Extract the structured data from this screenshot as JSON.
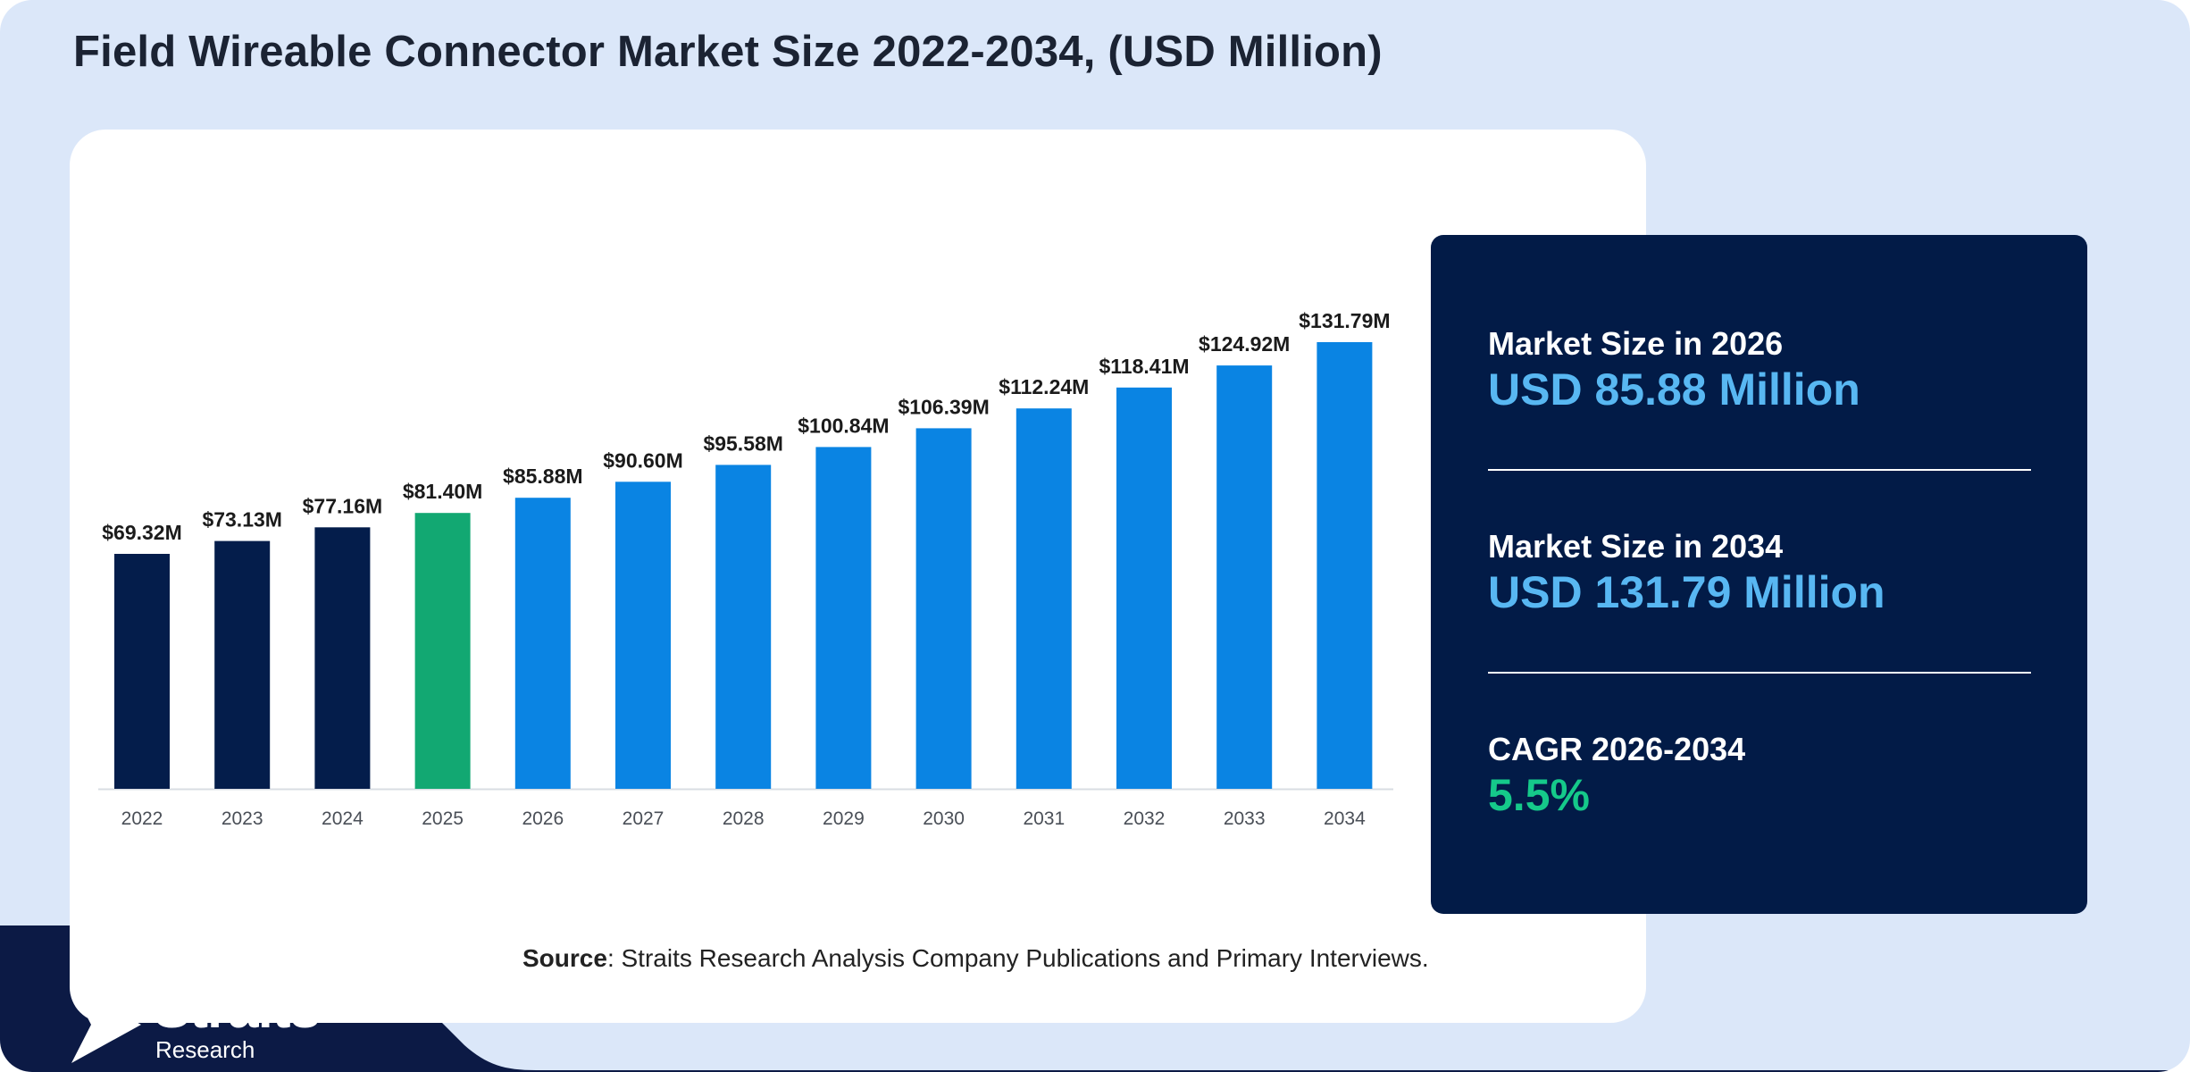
{
  "title": "Field Wireable Connector Market Size 2022-2034, (USD Million)",
  "source": {
    "label": "Source",
    "text": ": Straits Research Analysis Company Publications and Primary Interviews."
  },
  "info_panel": {
    "stats": [
      {
        "label": "Market Size in 2026",
        "value": "USD 85.88 Million"
      },
      {
        "label": "Market Size in 2034",
        "value": "USD 131.79 Million"
      },
      {
        "label": "CAGR 2026-2034",
        "value": "5.5%"
      }
    ]
  },
  "logo": {
    "name": "Straits",
    "sub": "Research"
  },
  "colors": {
    "historical": "#041d4b",
    "base_year": "#12a872",
    "forecast": "#0a84e3",
    "panel_bg": "#021b47",
    "highlight_blue": "#58b7f2",
    "highlight_green": "#15c98a",
    "page_bg": "#dbe7f9"
  },
  "chart_data": {
    "type": "bar",
    "categories": [
      "2022",
      "2023",
      "2024",
      "2025",
      "2026",
      "2027",
      "2028",
      "2029",
      "2030",
      "2031",
      "2032",
      "2033",
      "2034"
    ],
    "values": [
      69.32,
      73.13,
      77.16,
      81.4,
      85.88,
      90.6,
      95.58,
      100.84,
      106.39,
      112.24,
      118.41,
      124.92,
      131.79
    ],
    "data_labels": [
      "$69.32M",
      "$73.13M",
      "$77.16M",
      "$81.40M",
      "$85.88M",
      "$90.60M",
      "$95.58M",
      "$100.84M",
      "$106.39M",
      "$112.24M",
      "$118.41M",
      "$124.92M",
      "$131.79M"
    ],
    "bar_color_groups": [
      "historical",
      "historical",
      "historical",
      "base_year",
      "forecast",
      "forecast",
      "forecast",
      "forecast",
      "forecast",
      "forecast",
      "forecast",
      "forecast",
      "forecast"
    ],
    "title": "Field Wireable Connector Market Size 2022-2034, (USD Million)",
    "xlabel": "",
    "ylabel": "",
    "grid": false,
    "y_axis_visible": false
  }
}
